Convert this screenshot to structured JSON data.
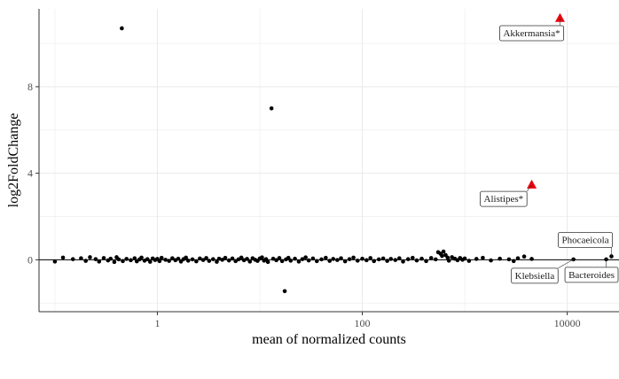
{
  "chart_data": {
    "type": "scatter",
    "title": "",
    "xlabel": "mean of normalized counts",
    "ylabel": "log2FoldChange",
    "x_scale": "log10",
    "xlim": [
      0.07,
      32000
    ],
    "ylim": [
      -2.4,
      11.6
    ],
    "x_ticks": [
      1,
      100,
      10000
    ],
    "x_tick_labels": [
      "1",
      "100",
      "10000"
    ],
    "y_ticks": [
      0,
      4,
      8
    ],
    "y_tick_labels": [
      "0",
      "4",
      "8"
    ],
    "grid": true,
    "reference_line_y": 0,
    "colors": {
      "points": "#000000",
      "significant": "#e8000b",
      "grid": "#ebebeb",
      "axis": "#333333"
    },
    "series": [
      {
        "marker": "circle",
        "color": "#000000",
        "points": [
          [
            0.45,
            10.7
          ],
          [
            13.0,
            7.0
          ],
          [
            17.5,
            -1.45
          ],
          [
            0.1,
            -0.08
          ],
          [
            0.12,
            0.1
          ],
          [
            0.15,
            0.03
          ],
          [
            0.18,
            0.07
          ],
          [
            0.2,
            -0.05
          ],
          [
            0.22,
            0.12
          ],
          [
            0.25,
            0.03
          ],
          [
            0.27,
            -0.08
          ],
          [
            0.3,
            0.08
          ],
          [
            0.33,
            -0.03
          ],
          [
            0.35,
            0.05
          ],
          [
            0.38,
            -0.1
          ],
          [
            0.4,
            0.12
          ],
          [
            0.42,
            0.02
          ],
          [
            0.46,
            -0.06
          ],
          [
            0.5,
            0.04
          ],
          [
            0.55,
            -0.02
          ],
          [
            0.6,
            0.07
          ],
          [
            0.63,
            -0.07
          ],
          [
            0.67,
            0.02
          ],
          [
            0.7,
            0.1
          ],
          [
            0.75,
            -0.04
          ],
          [
            0.8,
            0.03
          ],
          [
            0.85,
            -0.09
          ],
          [
            0.9,
            0.06
          ],
          [
            0.95,
            -0.01
          ],
          [
            1.0,
            0.04
          ],
          [
            1.05,
            -0.06
          ],
          [
            1.1,
            0.09
          ],
          [
            1.2,
            0.0
          ],
          [
            1.3,
            -0.05
          ],
          [
            1.4,
            0.07
          ],
          [
            1.5,
            -0.02
          ],
          [
            1.6,
            0.05
          ],
          [
            1.7,
            -0.08
          ],
          [
            1.8,
            0.03
          ],
          [
            1.9,
            0.1
          ],
          [
            2.0,
            -0.04
          ],
          [
            2.2,
            0.02
          ],
          [
            2.4,
            -0.07
          ],
          [
            2.6,
            0.06
          ],
          [
            2.8,
            -0.01
          ],
          [
            3.0,
            0.08
          ],
          [
            3.2,
            -0.05
          ],
          [
            3.5,
            0.03
          ],
          [
            3.8,
            -0.09
          ],
          [
            4.0,
            0.05
          ],
          [
            4.3,
            0.0
          ],
          [
            4.6,
            0.09
          ],
          [
            5.0,
            -0.03
          ],
          [
            5.4,
            0.06
          ],
          [
            5.8,
            -0.06
          ],
          [
            6.2,
            0.02
          ],
          [
            6.6,
            0.1
          ],
          [
            7.0,
            -0.02
          ],
          [
            7.5,
            0.04
          ],
          [
            8.0,
            -0.08
          ],
          [
            8.5,
            0.07
          ],
          [
            9.0,
            0.0
          ],
          [
            9.5,
            -0.05
          ],
          [
            10.0,
            0.06
          ],
          [
            10.5,
            0.11
          ],
          [
            11.0,
            -0.04
          ],
          [
            11.5,
            0.03
          ],
          [
            12.0,
            -0.1
          ],
          [
            13.5,
            0.05
          ],
          [
            14.5,
            -0.02
          ],
          [
            15.5,
            0.08
          ],
          [
            16.5,
            -0.06
          ],
          [
            18.0,
            0.02
          ],
          [
            19.0,
            0.09
          ],
          [
            20.0,
            -0.04
          ],
          [
            22.0,
            0.05
          ],
          [
            24.0,
            -0.08
          ],
          [
            26.0,
            0.03
          ],
          [
            28.0,
            0.11
          ],
          [
            30.0,
            -0.03
          ],
          [
            33.0,
            0.06
          ],
          [
            36.0,
            -0.06
          ],
          [
            40.0,
            0.02
          ],
          [
            44.0,
            0.09
          ],
          [
            48.0,
            -0.05
          ],
          [
            52.0,
            0.04
          ],
          [
            57.0,
            -0.01
          ],
          [
            62.0,
            0.07
          ],
          [
            68.0,
            -0.07
          ],
          [
            75.0,
            0.03
          ],
          [
            82.0,
            0.1
          ],
          [
            90.0,
            -0.04
          ],
          [
            100.0,
            0.05
          ],
          [
            110.0,
            -0.02
          ],
          [
            120.0,
            0.08
          ],
          [
            130.0,
            -0.06
          ],
          [
            145.0,
            0.02
          ],
          [
            160.0,
            0.06
          ],
          [
            175.0,
            -0.05
          ],
          [
            190.0,
            0.04
          ],
          [
            210.0,
            -0.01
          ],
          [
            230.0,
            0.07
          ],
          [
            250.0,
            -0.08
          ],
          [
            280.0,
            0.03
          ],
          [
            310.0,
            0.09
          ],
          [
            340.0,
            -0.03
          ],
          [
            380.0,
            0.05
          ],
          [
            420.0,
            -0.06
          ],
          [
            470.0,
            0.08
          ],
          [
            520.0,
            0.02
          ],
          [
            550.0,
            0.35
          ],
          [
            580.0,
            0.28
          ],
          [
            600.0,
            0.18
          ],
          [
            620.0,
            0.38
          ],
          [
            650.0,
            0.22
          ],
          [
            680.0,
            0.1
          ],
          [
            700.0,
            -0.04
          ],
          [
            750.0,
            0.12
          ],
          [
            800.0,
            0.05
          ],
          [
            850.0,
            -0.02
          ],
          [
            900.0,
            0.08
          ],
          [
            950.0,
            0.0
          ],
          [
            1000.0,
            0.06
          ],
          [
            1100.0,
            -0.05
          ],
          [
            1300.0,
            0.04
          ],
          [
            1500.0,
            0.09
          ],
          [
            1800.0,
            -0.03
          ],
          [
            2200.0,
            0.05
          ],
          [
            2700.0,
            0.02
          ],
          [
            3000.0,
            -0.06
          ],
          [
            3300.0,
            0.07
          ],
          [
            3800.0,
            0.15
          ],
          [
            4500.0,
            0.04
          ],
          [
            11500.0,
            0.02
          ],
          [
            24000.0,
            0.02
          ],
          [
            27000.0,
            0.16
          ]
        ]
      },
      {
        "marker": "triangle",
        "color": "#e8000b",
        "points": [
          [
            4500.0,
            3.45
          ],
          [
            8500.0,
            11.15
          ]
        ]
      }
    ],
    "annotations": [
      {
        "text": "Akkermansia*",
        "x": 8500.0,
        "y": 11.15
      },
      {
        "text": "Alistipes*",
        "x": 4500.0,
        "y": 3.45
      },
      {
        "text": "Phocaeicola",
        "x": 27000.0,
        "y": 0.16
      },
      {
        "text": "Klebsiella",
        "x": 11500.0,
        "y": 0.02
      },
      {
        "text": "Bacteroides",
        "x": 24000.0,
        "y": 0.02
      }
    ]
  }
}
